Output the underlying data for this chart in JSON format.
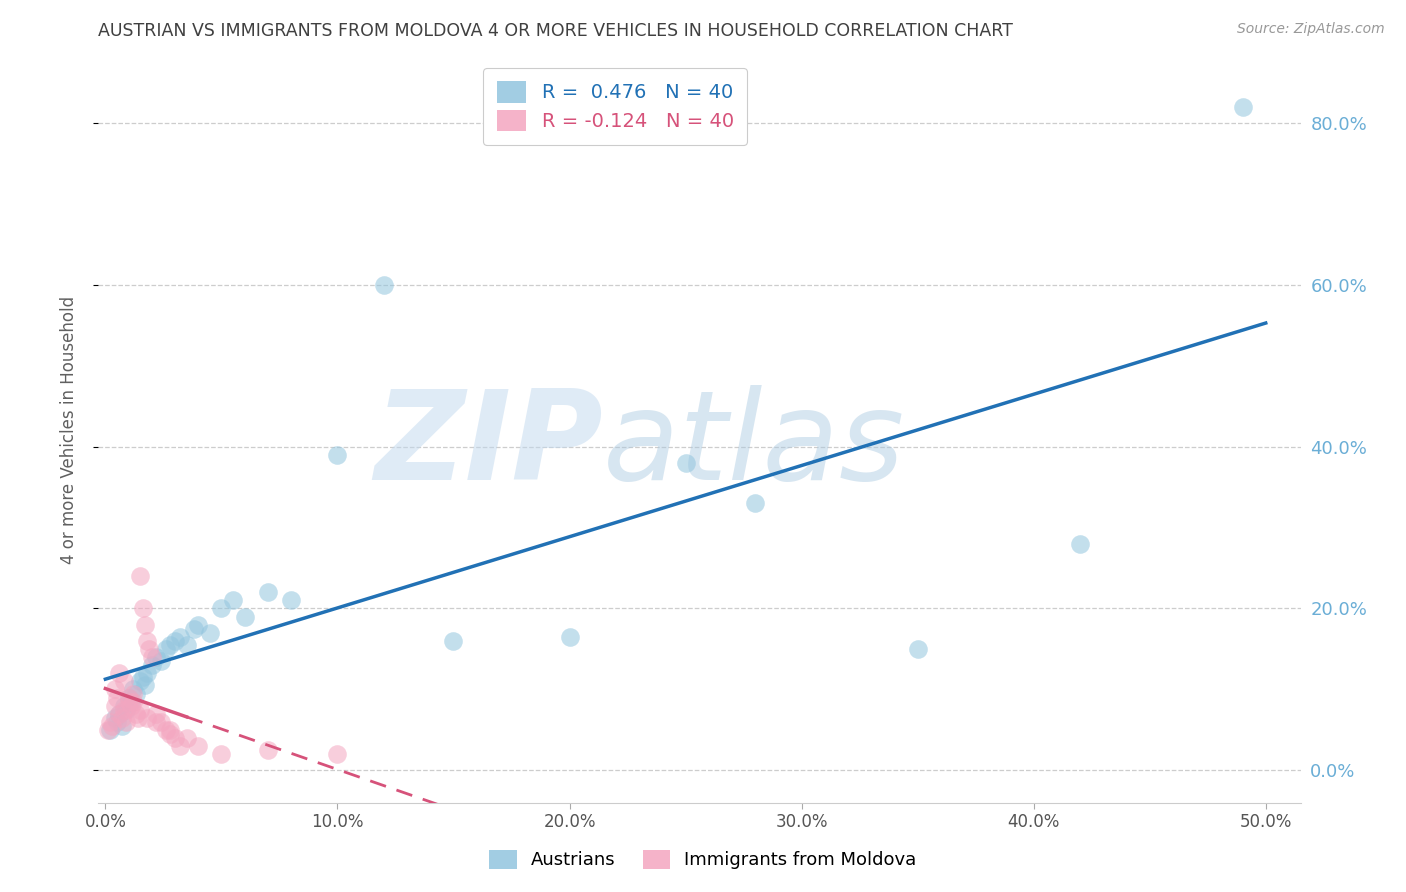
{
  "title": "AUSTRIAN VS IMMIGRANTS FROM MOLDOVA 4 OR MORE VEHICLES IN HOUSEHOLD CORRELATION CHART",
  "source": "Source: ZipAtlas.com",
  "ylabel": "4 or more Vehicles in Household",
  "xlim": [
    -0.003,
    0.515
  ],
  "ylim": [
    -0.04,
    0.88
  ],
  "xticks": [
    0.0,
    0.1,
    0.2,
    0.3,
    0.4,
    0.5
  ],
  "yticks_right": [
    0.0,
    0.2,
    0.4,
    0.6,
    0.8
  ],
  "blue_R": 0.476,
  "blue_N": 40,
  "pink_R": -0.124,
  "pink_N": 40,
  "blue_color": "#92c5de",
  "pink_color": "#f4a6c0",
  "blue_line_color": "#2171b5",
  "pink_line_color": "#d6527a",
  "blue_label": "Austrians",
  "pink_label": "Immigrants from Moldova",
  "blue_scatter_x": [
    0.002,
    0.004,
    0.005,
    0.006,
    0.007,
    0.008,
    0.009,
    0.01,
    0.011,
    0.012,
    0.013,
    0.015,
    0.016,
    0.017,
    0.018,
    0.02,
    0.022,
    0.024,
    0.026,
    0.028,
    0.03,
    0.032,
    0.035,
    0.038,
    0.04,
    0.045,
    0.05,
    0.055,
    0.06,
    0.07,
    0.08,
    0.1,
    0.12,
    0.15,
    0.2,
    0.25,
    0.28,
    0.35,
    0.42,
    0.49
  ],
  "blue_scatter_y": [
    0.05,
    0.065,
    0.06,
    0.07,
    0.055,
    0.08,
    0.075,
    0.09,
    0.085,
    0.1,
    0.095,
    0.11,
    0.115,
    0.105,
    0.12,
    0.13,
    0.14,
    0.135,
    0.15,
    0.155,
    0.16,
    0.165,
    0.155,
    0.175,
    0.18,
    0.17,
    0.2,
    0.21,
    0.19,
    0.22,
    0.21,
    0.39,
    0.6,
    0.16,
    0.165,
    0.38,
    0.33,
    0.15,
    0.28,
    0.82
  ],
  "pink_scatter_x": [
    0.001,
    0.002,
    0.003,
    0.004,
    0.005,
    0.006,
    0.007,
    0.008,
    0.009,
    0.01,
    0.011,
    0.012,
    0.013,
    0.014,
    0.015,
    0.016,
    0.017,
    0.018,
    0.019,
    0.02,
    0.022,
    0.024,
    0.026,
    0.028,
    0.03,
    0.032,
    0.04,
    0.05,
    0.07,
    0.1,
    0.004,
    0.006,
    0.008,
    0.01,
    0.012,
    0.015,
    0.018,
    0.022,
    0.028,
    0.035
  ],
  "pink_scatter_y": [
    0.05,
    0.06,
    0.055,
    0.08,
    0.09,
    0.07,
    0.065,
    0.075,
    0.06,
    0.085,
    0.08,
    0.095,
    0.07,
    0.065,
    0.24,
    0.2,
    0.18,
    0.16,
    0.15,
    0.14,
    0.07,
    0.06,
    0.05,
    0.045,
    0.04,
    0.03,
    0.03,
    0.02,
    0.025,
    0.02,
    0.1,
    0.12,
    0.11,
    0.09,
    0.085,
    0.075,
    0.065,
    0.06,
    0.05,
    0.04
  ],
  "watermark_zip": "ZIP",
  "watermark_atlas": "atlas",
  "background_color": "#ffffff",
  "grid_color": "#c8c8c8",
  "title_color": "#404040",
  "right_tick_color": "#6baed6",
  "ylabel_color": "#606060"
}
